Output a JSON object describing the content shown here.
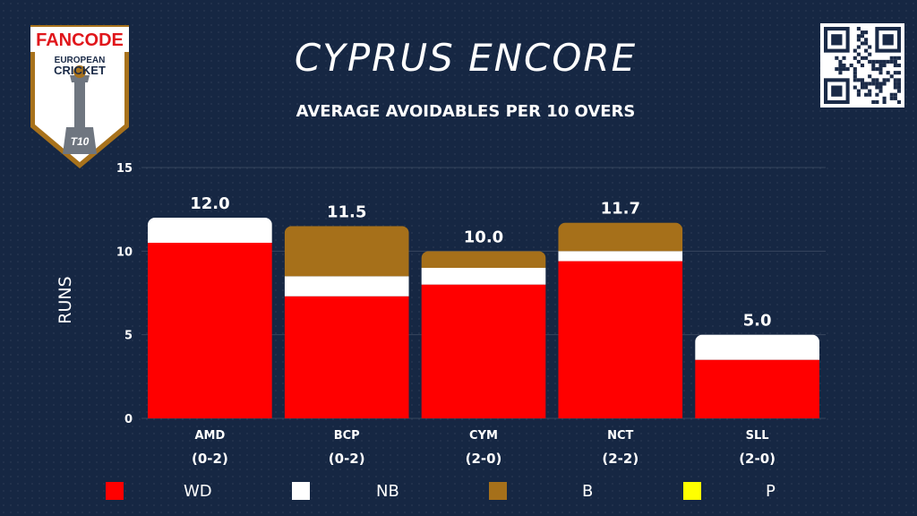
{
  "header": {
    "title": "CYPRUS ENCORE",
    "subtitle": "AVERAGE AVOIDABLES PER 10 OVERS"
  },
  "logo": {
    "brand_text": "FANCODE",
    "line1": "EUROPEAN",
    "line2": "CRICKET",
    "badge": "T10"
  },
  "colors": {
    "background": "#162743",
    "WD": "#ff0000",
    "NB": "#ffffff",
    "B": "#a6701a",
    "P": "#ffff00"
  },
  "chart_data": {
    "type": "bar",
    "stacked": true,
    "title": "AVERAGE AVOIDABLES PER 10 OVERS",
    "ylabel": "RUNS",
    "ylim": [
      0,
      15
    ],
    "yticks": [
      0,
      5,
      10,
      15
    ],
    "grid": true,
    "legend_position": "bottom",
    "categories": [
      "AMD",
      "BCP",
      "CYM",
      "NCT",
      "SLL"
    ],
    "category_sublabels": [
      "(0-2)",
      "(0-2)",
      "(2-0)",
      "(2-2)",
      "(2-0)"
    ],
    "totals": [
      "12.0",
      "11.5",
      "10.0",
      "11.7",
      "5.0"
    ],
    "series": [
      {
        "name": "WD",
        "color": "#ff0000",
        "values": [
          10.5,
          7.3,
          8.0,
          9.4,
          3.5
        ]
      },
      {
        "name": "NB",
        "color": "#ffffff",
        "values": [
          1.5,
          1.2,
          1.0,
          0.6,
          1.5
        ]
      },
      {
        "name": "B",
        "color": "#a6701a",
        "values": [
          0.0,
          3.0,
          1.0,
          1.7,
          0.0
        ]
      },
      {
        "name": "P",
        "color": "#ffff00",
        "values": [
          0.0,
          0.0,
          0.0,
          0.0,
          0.0
        ]
      }
    ]
  }
}
